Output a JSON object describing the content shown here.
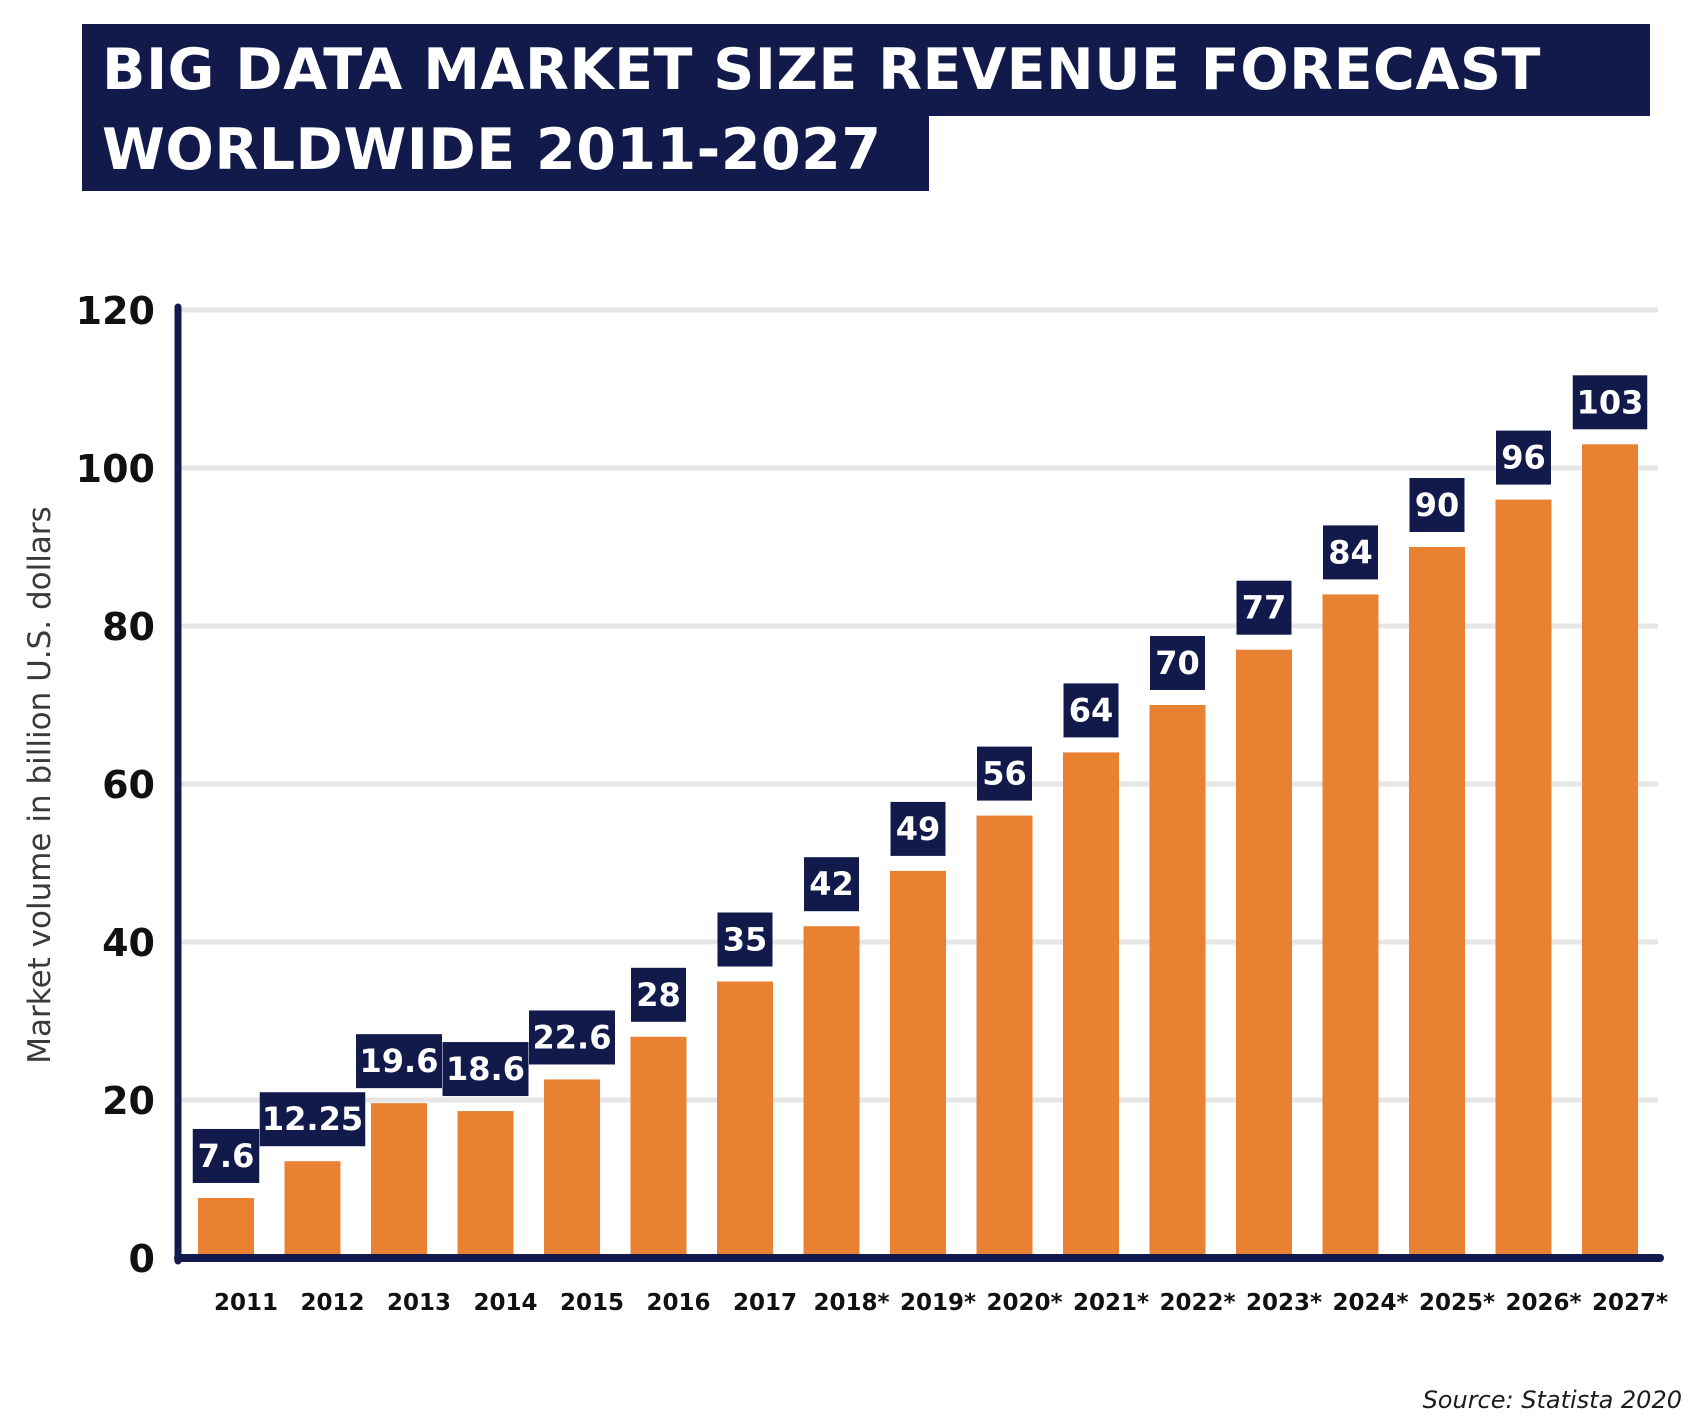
{
  "title": {
    "line1": "BIG DATA MARKET SIZE REVENUE FORECAST",
    "line2": "WORLDWIDE 2011-2027"
  },
  "source": "Source: Statista 2020",
  "colors": {
    "bar": "#e98133",
    "navy": "#121a4c",
    "grid": "#e6e6e6",
    "label_text": "#ffffff"
  },
  "chart_data": {
    "type": "bar",
    "title": "BIG DATA MARKET SIZE REVENUE FORECAST WORLDWIDE 2011-2027",
    "xlabel": "",
    "ylabel": "Market volume in billion U.S. dollars",
    "ylim": [
      0,
      120
    ],
    "yticks": [
      0,
      20,
      40,
      60,
      80,
      100,
      120
    ],
    "grid": true,
    "categories": [
      "2011",
      "2012",
      "2013",
      "2014",
      "2015",
      "2016",
      "2017",
      "2018*",
      "2019*",
      "2020*",
      "2021*",
      "2022*",
      "2023*",
      "2024*",
      "2025*",
      "2026*",
      "2027*"
    ],
    "values": [
      7.6,
      12.25,
      19.6,
      18.6,
      22.6,
      28,
      35,
      42,
      49,
      56,
      64,
      70,
      77,
      84,
      90,
      96,
      103
    ],
    "data_labels": [
      "7.6",
      "12.25",
      "19.6",
      "18.6",
      "22.6",
      "28",
      "35",
      "42",
      "49",
      "56",
      "64",
      "70",
      "77",
      "84",
      "90",
      "96",
      "103"
    ]
  }
}
